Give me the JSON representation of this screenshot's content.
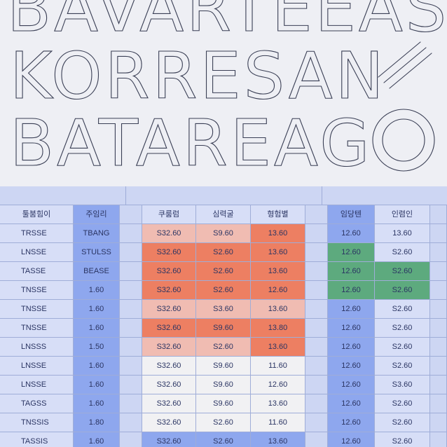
{
  "poster": {
    "line1": "BAVARTEEAS",
    "line2": "KORRESAN",
    "line3": "BATAREAG"
  },
  "sheet": {
    "headers": [
      "툴붐힘이",
      "주임리",
      "쿠룸럼",
      "심력굴",
      "형험별",
      "임당텐",
      "인렴인"
    ],
    "rows": [
      [
        "TRSSE",
        "TBANG",
        "S32.60",
        "S9.60",
        "13.60",
        "12.60",
        "13.60"
      ],
      [
        "LNSSE",
        "STULSS",
        "S32.60",
        "S2.60",
        "13.60",
        "12.60",
        "S2.60"
      ],
      [
        "TASSE",
        "BEASE",
        "S32.60",
        "S2.60",
        "13.60",
        "12.60",
        "S2.60"
      ],
      [
        "TNSSE",
        "1.60",
        "S32.60",
        "S2.60",
        "12.60",
        "12.60",
        "S2.60"
      ],
      [
        "TNSSE",
        "1.60",
        "S32.60",
        "S3.60",
        "13.60",
        "12.60",
        "S2.60"
      ],
      [
        "TNSSE",
        "1.60",
        "S32.60",
        "S9.60",
        "13.80",
        "12.60",
        "S2.60"
      ],
      [
        "LNSSS",
        "1.50",
        "S32.60",
        "S2.60",
        "13.60",
        "12.60",
        "S2.60"
      ],
      [
        "LNSSE",
        "1.60",
        "S32.60",
        "S9.60",
        "11.60",
        "12.60",
        "S2.60"
      ],
      [
        "LNSSE",
        "1.60",
        "S32.60",
        "S9.60",
        "12.60",
        "12.60",
        "S3.60"
      ],
      [
        "TAGSS",
        "1.60",
        "S32.60",
        "S9.60",
        "13.60",
        "12.60",
        "S2.60"
      ],
      [
        "TNSSIS",
        "1.80",
        "S32.60",
        "S2.60",
        "11.60",
        "12.60",
        "S2.60"
      ],
      [
        "TASSIS",
        "1.60",
        "S32.60",
        "S2.60",
        "13.60",
        "12.60",
        "S2.60"
      ]
    ],
    "fills": [
      [
        "base",
        "blue",
        "pink",
        "pink",
        "salmon",
        "blue",
        "base"
      ],
      [
        "base",
        "blue",
        "salmon",
        "salmon",
        "salmon",
        "green",
        "base"
      ],
      [
        "base",
        "blue",
        "salmon",
        "salmon",
        "salmon",
        "green",
        "green"
      ],
      [
        "base",
        "blue",
        "salmon",
        "salmon",
        "salmon",
        "green",
        "green"
      ],
      [
        "base",
        "blue",
        "pink",
        "pink",
        "pink",
        "blue",
        "base"
      ],
      [
        "base",
        "blue",
        "salmon",
        "salmon",
        "salmon",
        "blue",
        "base"
      ],
      [
        "base",
        "blue",
        "pink",
        "pink",
        "salmon",
        "blue",
        "base"
      ],
      [
        "base",
        "blue",
        "white",
        "white",
        "white",
        "blue",
        "base"
      ],
      [
        "base",
        "blue",
        "white",
        "white",
        "white",
        "blue",
        "base"
      ],
      [
        "base",
        "blue",
        "white",
        "white",
        "white",
        "blue",
        "base"
      ],
      [
        "base",
        "blue",
        "white",
        "white",
        "white",
        "blue",
        "base"
      ],
      [
        "base",
        "blue",
        "blue",
        "blue",
        "blue",
        "blue",
        "base"
      ]
    ],
    "colors": {
      "blue": "#8ea7ee",
      "salmon": "#ed7f62",
      "pink": "#f0bcb2",
      "green": "#5daa7e",
      "white": "#f1f1f3"
    }
  }
}
